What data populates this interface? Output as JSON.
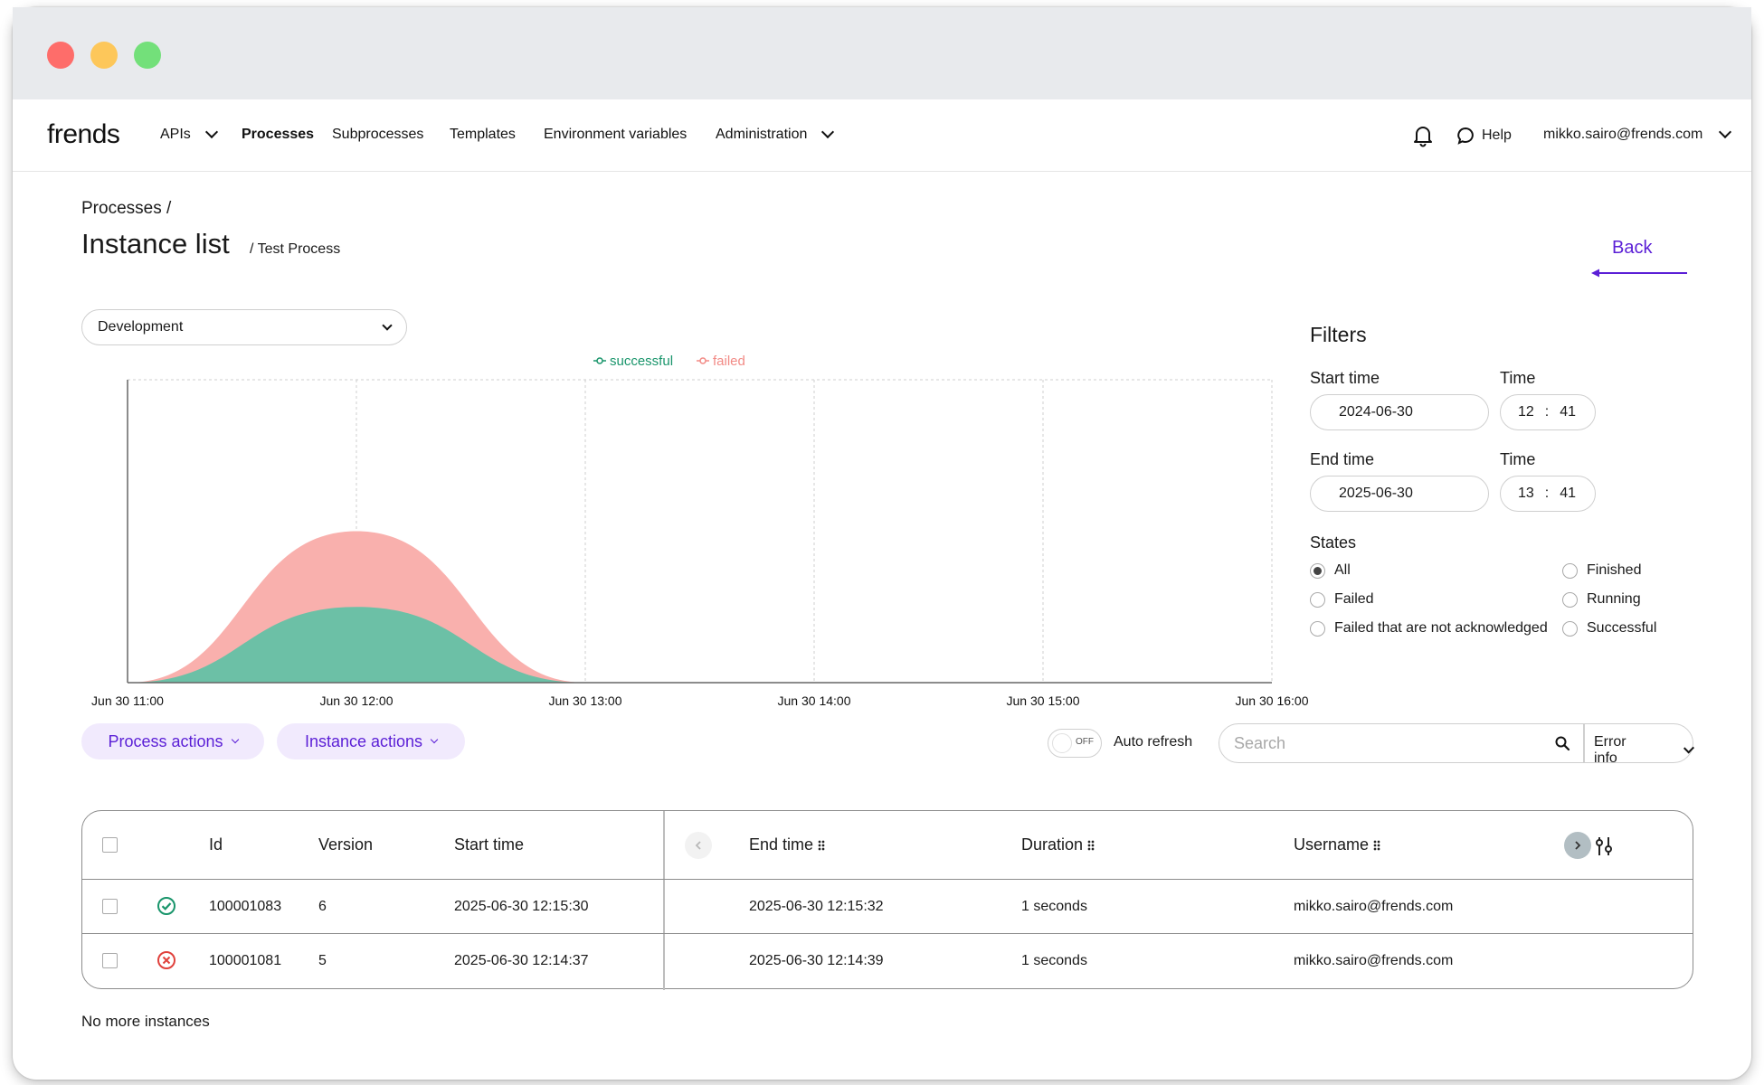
{
  "nav": {
    "logo": "frends",
    "items": [
      {
        "label": "APIs",
        "dropdown": true
      },
      {
        "label": "Processes",
        "active": true
      },
      {
        "label": "Subprocesses"
      },
      {
        "label": "Templates"
      },
      {
        "label": "Environment variables"
      },
      {
        "label": "Administration",
        "dropdown": true
      }
    ],
    "help": "Help",
    "user": "mikko.sairo@frends.com"
  },
  "header": {
    "breadcrumb": "Processes /",
    "title": "Instance list",
    "subtitle": "/ Test Process",
    "back": "Back"
  },
  "environment": {
    "selected": "Development"
  },
  "chart_data": {
    "type": "area",
    "legend": [
      "successful",
      "failed"
    ],
    "legend_position": "top-center",
    "x_tick_labels": [
      "Jun 30 11:00",
      "Jun 30 12:00",
      "Jun 30 13:00",
      "Jun 30 14:00",
      "Jun 30 15:00",
      "Jun 30 16:00"
    ],
    "x": [
      "Jun 30 11:00",
      "Jun 30 12:00",
      "Jun 30 13:00",
      "Jun 30 14:00",
      "Jun 30 15:00",
      "Jun 30 16:00"
    ],
    "series": [
      {
        "name": "successful",
        "values": [
          0,
          1,
          0,
          0,
          0,
          0
        ],
        "color": "#6cc0a6"
      },
      {
        "name": "failed",
        "values": [
          0,
          1,
          0,
          0,
          0,
          0
        ],
        "color": "#f9b0ad"
      }
    ],
    "stacked": true,
    "ylim": [
      0,
      4
    ],
    "grid": "vertical-dashed"
  },
  "filters": {
    "title": "Filters",
    "start_label": "Start time",
    "start_date": "2024-06-30",
    "start_time_label": "Time",
    "start_hour": "12",
    "start_min": "41",
    "end_label": "End time",
    "end_date": "2025-06-30",
    "end_time_label": "Time",
    "end_hour": "13",
    "end_min": "41",
    "states_label": "States",
    "states": {
      "all": "All",
      "failed": "Failed",
      "failed_unack": "Failed that are not acknowledged",
      "finished": "Finished",
      "running": "Running",
      "successful": "Successful"
    },
    "selected_state": "All"
  },
  "actions": {
    "process": "Process actions",
    "instance": "Instance actions",
    "toggle_state": "OFF",
    "auto_refresh": "Auto refresh",
    "search_placeholder": "Search",
    "error_info": "Error info"
  },
  "table": {
    "headers": {
      "id": "Id",
      "version": "Version",
      "start": "Start time",
      "end": "End time",
      "duration": "Duration",
      "username": "Username"
    },
    "rows": [
      {
        "status": "success",
        "id": "100001083",
        "version": "6",
        "start": "2025-06-30 12:15:30",
        "end": "2025-06-30 12:15:32",
        "duration": "1 seconds",
        "username": "mikko.sairo@frends.com"
      },
      {
        "status": "failed",
        "id": "100001081",
        "version": "5",
        "start": "2025-06-30 12:14:37",
        "end": "2025-06-30 12:14:39",
        "duration": "1 seconds",
        "username": "mikko.sairo@frends.com"
      }
    ]
  },
  "footer": {
    "no_more": "No more instances"
  },
  "colors": {
    "accent": "#5b1fd6",
    "accent_bg": "#f1eafd",
    "success": "#19956b",
    "failed": "#e0413c"
  }
}
